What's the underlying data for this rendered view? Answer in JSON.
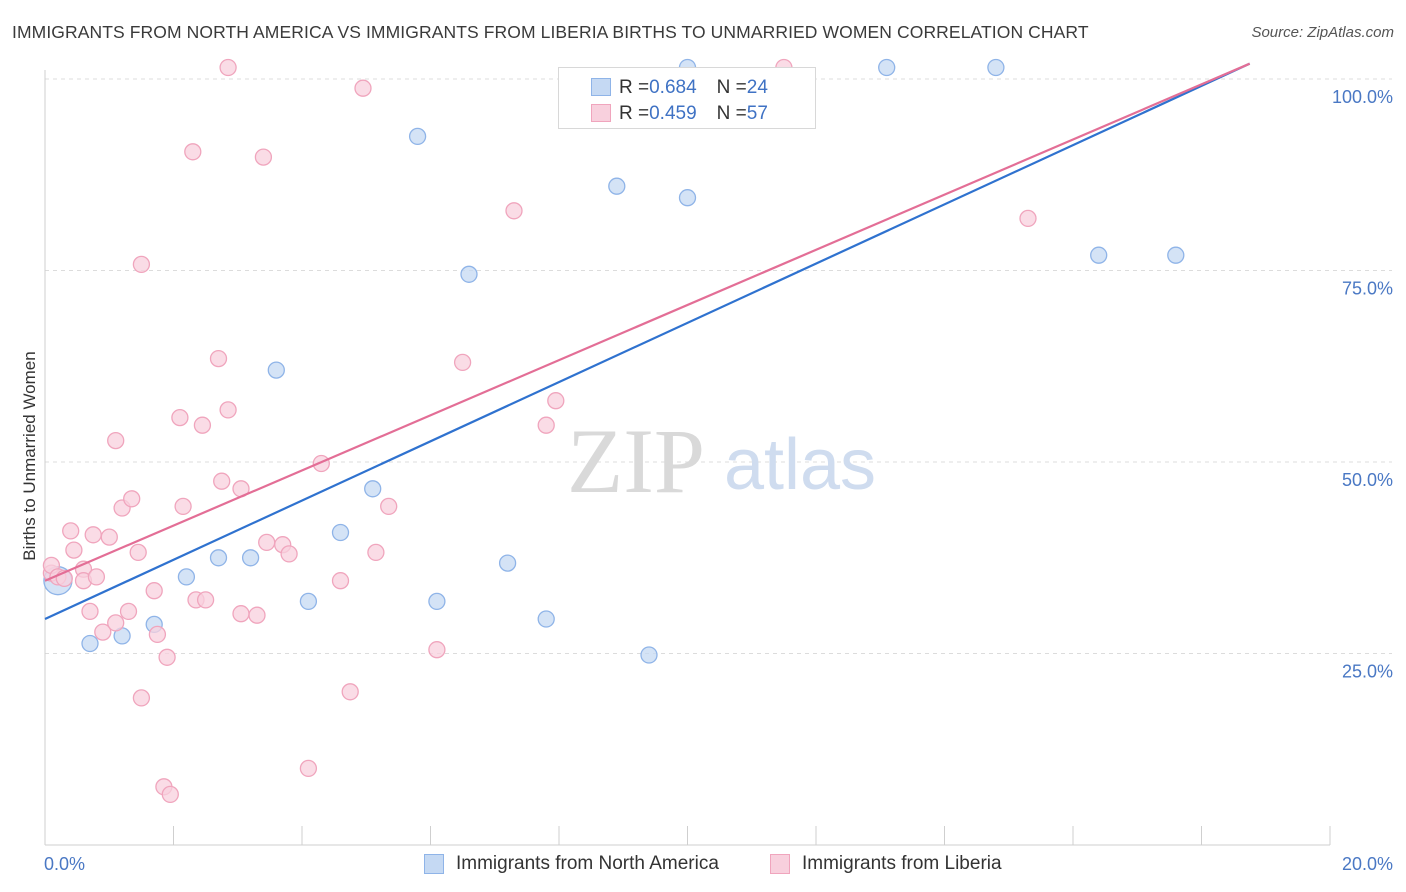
{
  "title": "IMMIGRANTS FROM NORTH AMERICA VS IMMIGRANTS FROM LIBERIA BIRTHS TO UNMARRIED WOMEN CORRELATION CHART",
  "source": "Source: ZipAtlas.com",
  "watermark": {
    "zip": "ZIP",
    "atlas": "atlas"
  },
  "legend_stats": [
    {
      "r_label": "R = ",
      "r_value": "0.684",
      "n_label": "N = ",
      "n_value": "24"
    },
    {
      "r_label": "R = ",
      "r_value": "0.459",
      "n_label": "N = ",
      "n_value": "57"
    }
  ],
  "chart_data": {
    "type": "scatter",
    "title": "IMMIGRANTS FROM NORTH AMERICA VS IMMIGRANTS FROM LIBERIA BIRTHS TO UNMARRIED WOMEN CORRELATION CHART",
    "xlabel": "",
    "ylabel": "Births to Unmarried Women",
    "xlim": [
      0,
      20
    ],
    "ylim": [
      0,
      102
    ],
    "x_tick_labels": [
      {
        "value": 0,
        "label": "0.0%"
      },
      {
        "value": 20,
        "label": "20.0%"
      }
    ],
    "y_tick_labels": [
      {
        "value": 25,
        "label": "25.0%"
      },
      {
        "value": 50,
        "label": "50.0%"
      },
      {
        "value": 75,
        "label": "75.0%"
      },
      {
        "value": 100,
        "label": "100.0%"
      }
    ],
    "series": [
      {
        "name": "Immigrants from North America",
        "color": "#8fb4e8",
        "fill": "#c5d9f3",
        "line_color": "#2f72cf",
        "r": 0.684,
        "n": 24,
        "trend": {
          "x0": 0,
          "y0": 29.5,
          "x1": 18.75,
          "y1": 102
        },
        "points": [
          [
            0.2,
            34.5,
            "big"
          ],
          [
            0.7,
            26.3
          ],
          [
            1.2,
            27.3
          ],
          [
            1.7,
            28.8
          ],
          [
            2.2,
            35.0
          ],
          [
            2.7,
            37.5
          ],
          [
            3.2,
            37.5
          ],
          [
            3.6,
            62.0
          ],
          [
            4.1,
            31.8
          ],
          [
            4.6,
            40.8
          ],
          [
            5.1,
            46.5
          ],
          [
            5.8,
            92.5
          ],
          [
            6.1,
            31.8
          ],
          [
            6.6,
            74.5
          ],
          [
            7.2,
            36.8
          ],
          [
            7.8,
            29.5
          ],
          [
            8.9,
            86.0
          ],
          [
            9.4,
            24.8
          ],
          [
            10.0,
            84.5
          ],
          [
            10.0,
            101.5
          ],
          [
            13.1,
            101.5
          ],
          [
            14.8,
            101.5
          ],
          [
            16.4,
            77.0
          ],
          [
            17.6,
            77.0
          ]
        ]
      },
      {
        "name": "Immigrants from Liberia",
        "color": "#f0a5bd",
        "fill": "#f8d0dd",
        "line_color": "#e36e96",
        "r": 0.459,
        "n": 57,
        "trend": {
          "x0": 0,
          "y0": 34.5,
          "x1": 18.75,
          "y1": 102
        },
        "points": [
          [
            0.1,
            35.5
          ],
          [
            0.1,
            36.5
          ],
          [
            0.2,
            35.0
          ],
          [
            0.3,
            34.8
          ],
          [
            0.4,
            41.0
          ],
          [
            0.45,
            38.5
          ],
          [
            0.6,
            36.0
          ],
          [
            0.6,
            34.5
          ],
          [
            0.7,
            30.5
          ],
          [
            0.75,
            40.5
          ],
          [
            0.8,
            35.0
          ],
          [
            0.9,
            27.8
          ],
          [
            1.0,
            40.2
          ],
          [
            1.1,
            29.0
          ],
          [
            1.1,
            52.8
          ],
          [
            1.2,
            44.0
          ],
          [
            1.3,
            30.5
          ],
          [
            1.35,
            45.2
          ],
          [
            1.45,
            38.2
          ],
          [
            1.5,
            75.8
          ],
          [
            1.5,
            19.2
          ],
          [
            1.7,
            33.2
          ],
          [
            1.75,
            27.5
          ],
          [
            1.85,
            7.6
          ],
          [
            1.9,
            24.5
          ],
          [
            1.95,
            6.6
          ],
          [
            2.1,
            55.8
          ],
          [
            2.15,
            44.2
          ],
          [
            2.3,
            90.5
          ],
          [
            2.35,
            32.0
          ],
          [
            2.5,
            32.0
          ],
          [
            2.45,
            54.8
          ],
          [
            2.7,
            63.5
          ],
          [
            2.75,
            47.5
          ],
          [
            2.85,
            56.8
          ],
          [
            2.85,
            101.5
          ],
          [
            3.05,
            46.5
          ],
          [
            3.05,
            30.2
          ],
          [
            3.3,
            30.0
          ],
          [
            3.4,
            89.8
          ],
          [
            3.45,
            39.5
          ],
          [
            3.7,
            39.2
          ],
          [
            3.8,
            38.0
          ],
          [
            4.1,
            10.0
          ],
          [
            4.3,
            49.8
          ],
          [
            4.6,
            34.5
          ],
          [
            4.75,
            20.0
          ],
          [
            4.95,
            98.8
          ],
          [
            5.15,
            38.2
          ],
          [
            5.35,
            44.2
          ],
          [
            6.1,
            25.5
          ],
          [
            6.5,
            63.0
          ],
          [
            7.3,
            82.8
          ],
          [
            7.8,
            54.8
          ],
          [
            7.95,
            58.0
          ],
          [
            11.5,
            101.5
          ],
          [
            15.3,
            81.8
          ]
        ]
      }
    ]
  }
}
